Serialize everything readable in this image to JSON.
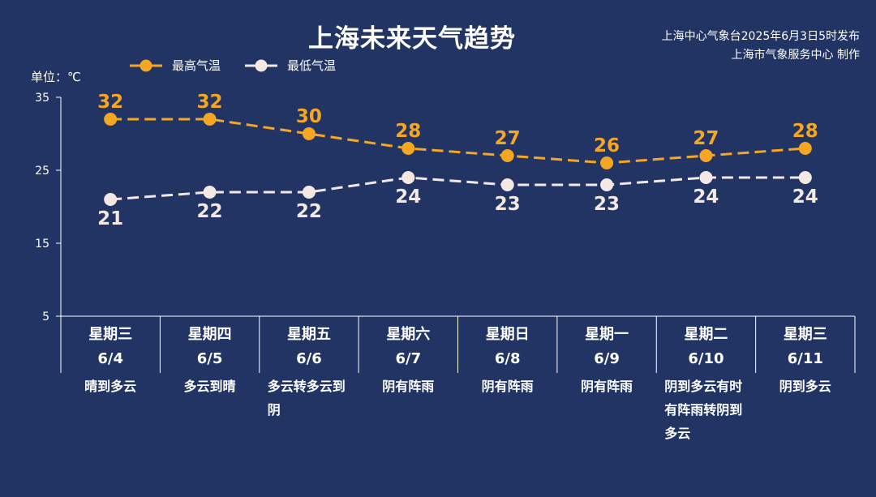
{
  "title": "上海未来天气趋势",
  "publisher": {
    "line1": "上海中心气象台2025年6月3日5时发布",
    "line2": "上海市气象服务中心 制作"
  },
  "unit_label": "单位：℃",
  "colors": {
    "background": "#223464",
    "high": "#F5A623",
    "low": "#F3E8E3",
    "axis": "#FFFFFF"
  },
  "chart_data": {
    "type": "line",
    "ylim": [
      5,
      35
    ],
    "yticks": [
      5,
      15,
      25,
      35
    ],
    "categories": [
      "星期三",
      "星期四",
      "星期五",
      "星期六",
      "星期日",
      "星期一",
      "星期二",
      "星期三"
    ],
    "dates": [
      "6/4",
      "6/5",
      "6/6",
      "6/7",
      "6/8",
      "6/9",
      "6/10",
      "6/11"
    ],
    "weather": [
      "晴到多云",
      "多云到晴",
      "多云转多云到阴",
      "阴有阵雨",
      "阴有阵雨",
      "阴有阵雨",
      "阴到多云有时有阵雨转阴到多云",
      "阴到多云"
    ],
    "series": [
      {
        "name": "最高气温",
        "values": [
          32,
          32,
          30,
          28,
          27,
          26,
          27,
          28
        ]
      },
      {
        "name": "最低气温",
        "values": [
          21,
          22,
          22,
          24,
          23,
          23,
          24,
          24
        ]
      }
    ],
    "legend_position": "top-left"
  }
}
